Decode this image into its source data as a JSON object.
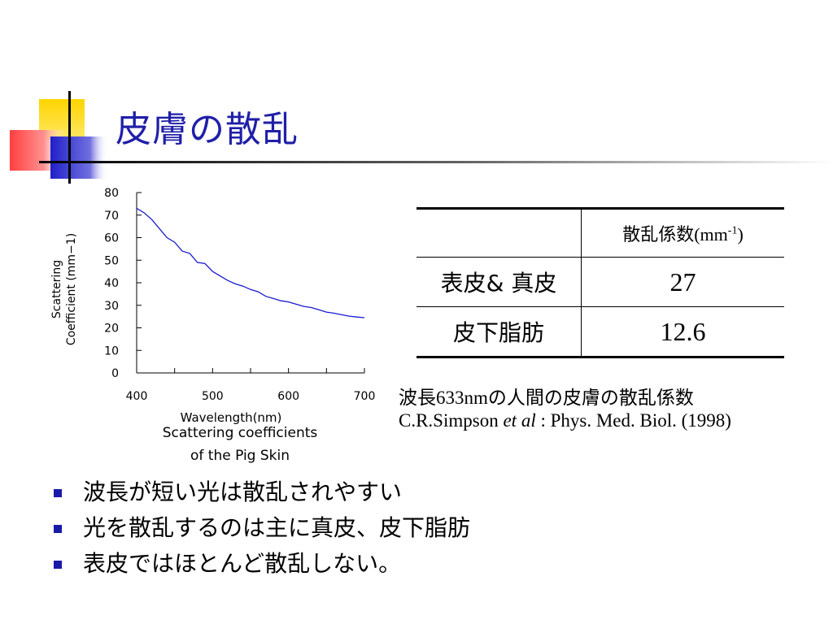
{
  "slide": {
    "title": "皮膚の散乱",
    "accent_color": "#1f1fa8"
  },
  "chart_data": {
    "type": "line",
    "x": [
      400,
      410,
      420,
      430,
      440,
      450,
      460,
      470,
      480,
      490,
      500,
      510,
      520,
      530,
      540,
      550,
      560,
      570,
      580,
      590,
      600,
      610,
      620,
      630,
      640,
      650,
      660,
      670,
      680,
      690,
      700
    ],
    "y": [
      73,
      71,
      68,
      64,
      60,
      58,
      54,
      53,
      49,
      48.5,
      45,
      43,
      41,
      39.5,
      38.5,
      37,
      36,
      34,
      33,
      32,
      31.5,
      30.5,
      29.5,
      29,
      28,
      27,
      26.5,
      25.8,
      25.2,
      24.8,
      24.5
    ],
    "xlabel": "Wavelength(nm)",
    "ylabel": "Scattering Coefficient (mm−1)",
    "xlim": [
      400,
      700
    ],
    "ylim": [
      0,
      80
    ],
    "xticks": [
      400,
      500,
      600,
      700
    ],
    "yticks": [
      0,
      10,
      20,
      30,
      40,
      50,
      60,
      70,
      80
    ],
    "line_color": "#1a1ad0",
    "caption_line1": "Scattering coefficients",
    "caption_line2": "of the Pig Skin"
  },
  "table": {
    "header": "散乱係数(mm",
    "header_sup": "-1",
    "header_close": ")",
    "rows": [
      {
        "label": "表皮& 真皮",
        "value": "27"
      },
      {
        "label": "皮下脂肪",
        "value": "12.6"
      }
    ]
  },
  "note": "波長633nmの人間の皮膚の散乱係数",
  "citation": {
    "authors": "C.R.Simpson ",
    "etal": "et al",
    "rest": " : Phys. Med. Biol. (1998)"
  },
  "bullets": [
    "波長が短い光は散乱されやすい",
    "光を散乱するのは主に真皮、皮下脂肪",
    "表皮ではほとんど散乱しない。"
  ]
}
